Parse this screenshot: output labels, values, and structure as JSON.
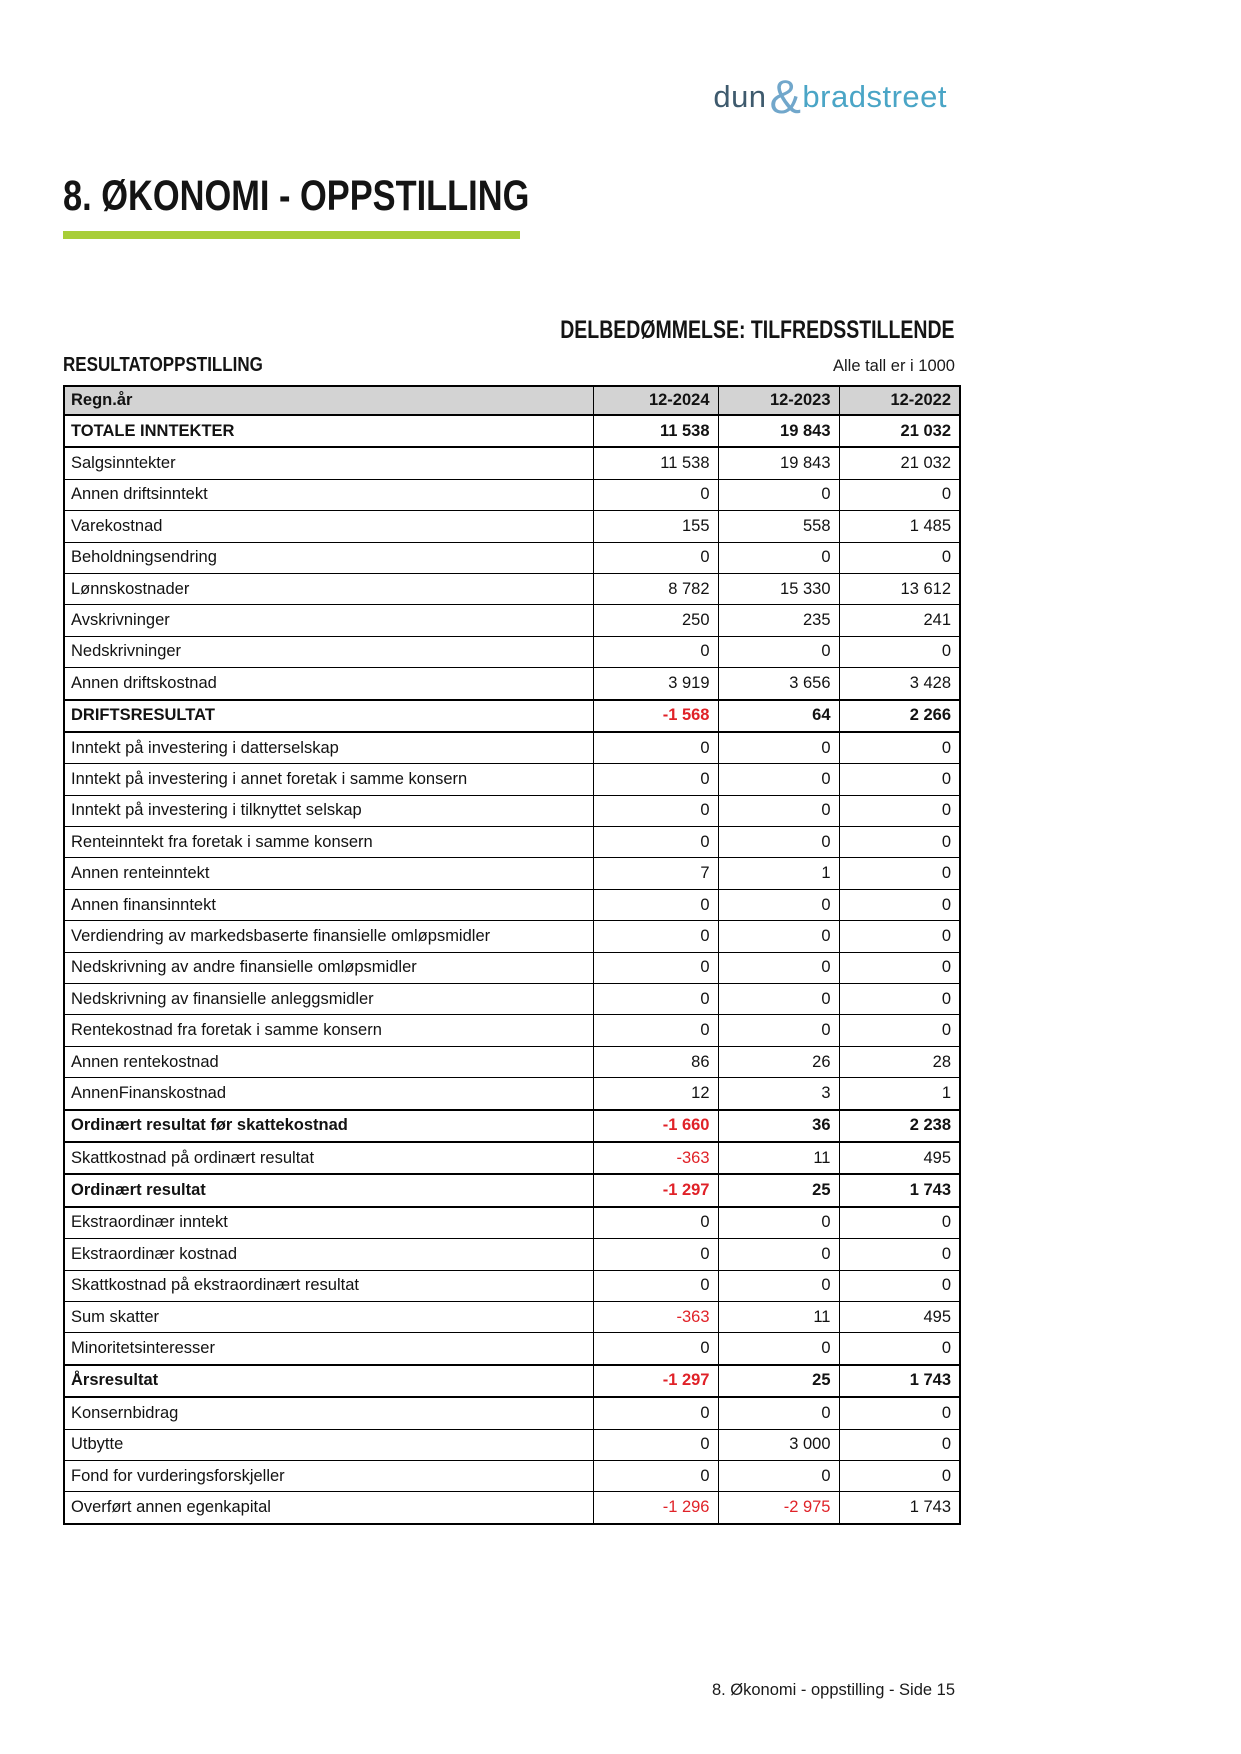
{
  "logo": {
    "part1": "dun",
    "amp": "&",
    "part2": "bradstreet"
  },
  "header": {
    "title": "8. ØKONOMI - OPPSTILLING",
    "assessment": "DELBEDØMMELSE: TILFREDSSTILLENDE",
    "section_label": "RESULTATOPPSTILLING",
    "units_note": "Alle tall er i 1000"
  },
  "footer": {
    "text": "8. Økonomi - oppstilling - Side 15"
  },
  "colors": {
    "accent_green": "#a8ce38",
    "negative_red": "#e02228",
    "header_gray": "#d3d3d3",
    "logo_dark": "#3e5a6d",
    "logo_light": "#71a7cb",
    "logo_teal": "#4aa5c6"
  },
  "table": {
    "columns": [
      "Regn.år",
      "12-2024",
      "12-2023",
      "12-2022"
    ],
    "rows": [
      {
        "label": "TOTALE INNTEKTER",
        "values": [
          "11 538",
          "19 843",
          "21 032"
        ],
        "bold": true
      },
      {
        "label": "Salgsinntekter",
        "values": [
          "11 538",
          "19 843",
          "21 032"
        ],
        "bold": false
      },
      {
        "label": "Annen driftsinntekt",
        "values": [
          "0",
          "0",
          "0"
        ],
        "bold": false
      },
      {
        "label": "Varekostnad",
        "values": [
          "155",
          "558",
          "1 485"
        ],
        "bold": false
      },
      {
        "label": "Beholdningsendring",
        "values": [
          "0",
          "0",
          "0"
        ],
        "bold": false
      },
      {
        "label": "Lønnskostnader",
        "values": [
          "8 782",
          "15 330",
          "13 612"
        ],
        "bold": false
      },
      {
        "label": "Avskrivninger",
        "values": [
          "250",
          "235",
          "241"
        ],
        "bold": false
      },
      {
        "label": "Nedskrivninger",
        "values": [
          "0",
          "0",
          "0"
        ],
        "bold": false
      },
      {
        "label": "Annen driftskostnad",
        "values": [
          "3 919",
          "3 656",
          "3 428"
        ],
        "bold": false
      },
      {
        "label": "DRIFTSRESULTAT",
        "values": [
          "-1 568",
          "64",
          "2 266"
        ],
        "bold": true
      },
      {
        "label": "Inntekt på investering i datterselskap",
        "values": [
          "0",
          "0",
          "0"
        ],
        "bold": false
      },
      {
        "label": "Inntekt på investering i annet foretak i samme konsern",
        "values": [
          "0",
          "0",
          "0"
        ],
        "bold": false
      },
      {
        "label": "Inntekt på investering i tilknyttet selskap",
        "values": [
          "0",
          "0",
          "0"
        ],
        "bold": false
      },
      {
        "label": "Renteinntekt fra foretak i samme konsern",
        "values": [
          "0",
          "0",
          "0"
        ],
        "bold": false
      },
      {
        "label": "Annen renteinntekt",
        "values": [
          "7",
          "1",
          "0"
        ],
        "bold": false
      },
      {
        "label": "Annen finansinntekt",
        "values": [
          "0",
          "0",
          "0"
        ],
        "bold": false
      },
      {
        "label": "Verdiendring av markedsbaserte finansielle omløpsmidler",
        "values": [
          "0",
          "0",
          "0"
        ],
        "bold": false
      },
      {
        "label": "Nedskrivning av andre finansielle omløpsmidler",
        "values": [
          "0",
          "0",
          "0"
        ],
        "bold": false
      },
      {
        "label": "Nedskrivning av finansielle anleggsmidler",
        "values": [
          "0",
          "0",
          "0"
        ],
        "bold": false
      },
      {
        "label": "Rentekostnad fra foretak i samme konsern",
        "values": [
          "0",
          "0",
          "0"
        ],
        "bold": false
      },
      {
        "label": "Annen rentekostnad",
        "values": [
          "86",
          "26",
          "28"
        ],
        "bold": false
      },
      {
        "label": "AnnenFinanskostnad",
        "values": [
          "12",
          "3",
          "1"
        ],
        "bold": false
      },
      {
        "label": "Ordinært resultat før skattekostnad",
        "values": [
          "-1 660",
          "36",
          "2 238"
        ],
        "bold": true
      },
      {
        "label": "Skattkostnad på ordinært resultat",
        "values": [
          "-363",
          "11",
          "495"
        ],
        "bold": false
      },
      {
        "label": "Ordinært resultat",
        "values": [
          "-1 297",
          "25",
          "1 743"
        ],
        "bold": true
      },
      {
        "label": "Ekstraordinær inntekt",
        "values": [
          "0",
          "0",
          "0"
        ],
        "bold": false
      },
      {
        "label": "Ekstraordinær kostnad",
        "values": [
          "0",
          "0",
          "0"
        ],
        "bold": false
      },
      {
        "label": "Skattkostnad på ekstraordinært resultat",
        "values": [
          "0",
          "0",
          "0"
        ],
        "bold": false
      },
      {
        "label": "Sum skatter",
        "values": [
          "-363",
          "11",
          "495"
        ],
        "bold": false
      },
      {
        "label": "Minoritetsinteresser",
        "values": [
          "0",
          "0",
          "0"
        ],
        "bold": false
      },
      {
        "label": "Årsresultat",
        "values": [
          "-1 297",
          "25",
          "1 743"
        ],
        "bold": true
      },
      {
        "label": "Konsernbidrag",
        "values": [
          "0",
          "0",
          "0"
        ],
        "bold": false
      },
      {
        "label": "Utbytte",
        "values": [
          "0",
          "3 000",
          "0"
        ],
        "bold": false
      },
      {
        "label": "Fond for vurderingsforskjeller",
        "values": [
          "0",
          "0",
          "0"
        ],
        "bold": false
      },
      {
        "label": "Overført annen egenkapital",
        "values": [
          "-1 296",
          "-2 975",
          "1 743"
        ],
        "bold": false
      }
    ]
  }
}
